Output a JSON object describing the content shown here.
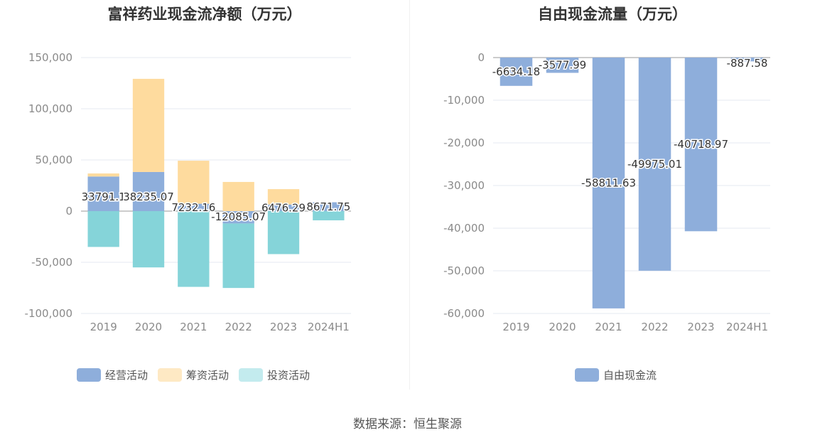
{
  "colors": {
    "operating": "#8eaedb",
    "financing": "#fedb9e",
    "investing": "#85d4d9",
    "fcf": "#8eaedb",
    "grid": "#e6e8f0",
    "zero": "#999999"
  },
  "legend_swatches": {
    "investing": "#c3ebee",
    "financing": "#fee9c4"
  },
  "source": "数据来源：恒生聚源",
  "chart_data": [
    {
      "type": "bar",
      "stacked": true,
      "title": "富祥药业现金流净额（万元）",
      "categories": [
        "2019",
        "2020",
        "2021",
        "2022",
        "2023",
        "2024H1"
      ],
      "ylim": [
        -100000,
        150000
      ],
      "yticks": [
        150000,
        100000,
        50000,
        0,
        -50000,
        -100000
      ],
      "ytick_labels": [
        "150,000",
        "100,000",
        "50,000",
        "0",
        "-50,000",
        "-100,000"
      ],
      "grid": true,
      "legend_position": "bottom",
      "series": [
        {
          "name": "经营活动",
          "values": [
            33791.1,
            38235.07,
            7232.16,
            -12085.07,
            6476.29,
            8671.75
          ]
        },
        {
          "name": "筹资活动",
          "values": [
            3000,
            91000,
            42000,
            28500,
            15000,
            0
          ]
        },
        {
          "name": "投资活动",
          "values": [
            -35000,
            -55000,
            -74000,
            -63000,
            -42000,
            -9000
          ]
        }
      ],
      "data_labels": [
        "33791.1",
        "38235.07",
        "7232.16",
        "-12085.07",
        "6476.29",
        "8671.75"
      ]
    },
    {
      "type": "bar",
      "title": "自由现金流量（万元）",
      "categories": [
        "2019",
        "2020",
        "2021",
        "2022",
        "2023",
        "2024H1"
      ],
      "ylim": [
        -60000,
        0
      ],
      "yticks": [
        0,
        -10000,
        -20000,
        -30000,
        -40000,
        -50000,
        -60000
      ],
      "ytick_labels": [
        "0",
        "-10,000",
        "-20,000",
        "-30,000",
        "-40,000",
        "-50,000",
        "-60,000"
      ],
      "grid": true,
      "legend_position": "bottom",
      "series": [
        {
          "name": "自由现金流",
          "values": [
            -6634.18,
            -3577.99,
            -58811.63,
            -49975.01,
            -40718.97,
            -887.58
          ]
        }
      ],
      "data_labels": [
        "-6634.18",
        "-3577.99",
        "-58811.63",
        "-49975.01",
        "-40718.97",
        "-887.58"
      ]
    }
  ]
}
